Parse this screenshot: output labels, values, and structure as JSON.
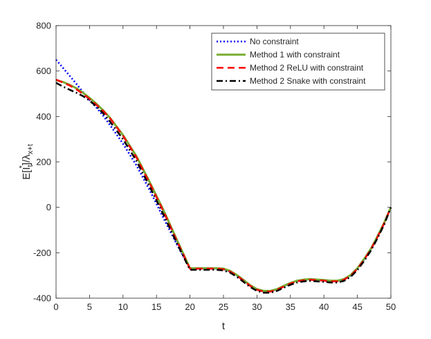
{
  "chart_data": {
    "type": "line",
    "title": "",
    "xlabel": "t",
    "ylabel_main": "E[I",
    "ylabel_sub": "t",
    "ylabel_sup": "*",
    "ylabel_tail": "]/λ",
    "ylabel_tail_sub": "x+t",
    "xlim": [
      0,
      50
    ],
    "ylim": [
      -400,
      800
    ],
    "xticks": [
      "0",
      "5",
      "10",
      "15",
      "20",
      "25",
      "30",
      "35",
      "40",
      "45",
      "50"
    ],
    "xtick_values": [
      0,
      5,
      10,
      15,
      20,
      25,
      30,
      35,
      40,
      45,
      50
    ],
    "yticks": [
      "-400",
      "-200",
      "0",
      "200",
      "400",
      "600",
      "800"
    ],
    "ytick_values": [
      -400,
      -200,
      0,
      200,
      400,
      600,
      800
    ],
    "grid": false,
    "legend_position": "top-right",
    "series": [
      {
        "name": "No constraint",
        "color": "#0000ff",
        "dash": "dotted",
        "x": [
          0,
          1,
          2,
          3,
          4,
          5,
          6,
          7,
          8,
          10,
          12,
          14,
          16,
          18,
          20,
          21,
          22,
          23,
          24,
          25,
          26,
          27,
          28,
          29,
          30,
          31,
          32,
          33,
          34,
          35,
          36,
          37,
          38,
          39,
          40,
          41,
          42,
          43,
          44,
          45,
          46,
          47,
          48,
          49,
          50
        ],
        "y": [
          650,
          615,
          580,
          545,
          508,
          472,
          440,
          405,
          365,
          280,
          185,
          75,
          -45,
          -160,
          -270,
          -270,
          -270,
          -270,
          -270,
          -272,
          -282,
          -300,
          -322,
          -345,
          -362,
          -370,
          -370,
          -362,
          -348,
          -335,
          -325,
          -320,
          -318,
          -320,
          -322,
          -325,
          -325,
          -318,
          -300,
          -270,
          -230,
          -185,
          -130,
          -70,
          0
        ]
      },
      {
        "name": "Method 1 with constraint",
        "color": "#77ac30",
        "dash": "solid",
        "x": [
          0,
          1,
          2,
          3,
          4,
          5,
          6,
          7,
          8,
          10,
          12,
          14,
          16,
          18,
          20,
          21,
          22,
          23,
          24,
          25,
          26,
          27,
          28,
          29,
          30,
          31,
          32,
          33,
          34,
          35,
          36,
          37,
          38,
          39,
          40,
          41,
          42,
          43,
          44,
          45,
          46,
          47,
          48,
          49,
          50
        ],
        "y": [
          560,
          552,
          540,
          525,
          505,
          482,
          456,
          428,
          396,
          318,
          225,
          110,
          -10,
          -140,
          -268,
          -268,
          -268,
          -268,
          -268,
          -270,
          -280,
          -298,
          -320,
          -343,
          -360,
          -368,
          -368,
          -360,
          -346,
          -333,
          -323,
          -318,
          -316,
          -318,
          -320,
          -323,
          -323,
          -316,
          -298,
          -268,
          -228,
          -183,
          -128,
          -68,
          0
        ]
      },
      {
        "name": "Method 2 ReLU with constraint",
        "color": "#ff0000",
        "dash": "dashed",
        "x": [
          0,
          1,
          2,
          3,
          4,
          5,
          6,
          7,
          8,
          10,
          12,
          14,
          16,
          18,
          20,
          21,
          22,
          23,
          24,
          25,
          26,
          27,
          28,
          29,
          30,
          31,
          32,
          33,
          34,
          35,
          36,
          37,
          38,
          39,
          40,
          41,
          42,
          43,
          44,
          45,
          46,
          47,
          48,
          49,
          50
        ],
        "y": [
          562,
          550,
          537,
          520,
          500,
          477,
          452,
          425,
          395,
          315,
          220,
          105,
          -15,
          -145,
          -270,
          -270,
          -270,
          -270,
          -270,
          -273,
          -283,
          -301,
          -323,
          -346,
          -363,
          -371,
          -371,
          -363,
          -349,
          -336,
          -326,
          -321,
          -319,
          -321,
          -323,
          -326,
          -326,
          -319,
          -301,
          -271,
          -231,
          -186,
          -131,
          -71,
          0
        ]
      },
      {
        "name": "Method 2 Snake with constraint",
        "color": "#000000",
        "dash": "dashdot",
        "x": [
          0,
          1,
          2,
          3,
          4,
          5,
          6,
          7,
          8,
          10,
          12,
          14,
          16,
          18,
          20,
          21,
          22,
          23,
          24,
          25,
          26,
          27,
          28,
          29,
          30,
          31,
          32,
          33,
          34,
          35,
          36,
          37,
          38,
          39,
          40,
          41,
          42,
          43,
          44,
          45,
          46,
          47,
          48,
          49,
          50
        ],
        "y": [
          548,
          532,
          518,
          505,
          490,
          470,
          445,
          415,
          380,
          300,
          205,
          90,
          -30,
          -155,
          -275,
          -275,
          -275,
          -275,
          -275,
          -278,
          -288,
          -306,
          -328,
          -351,
          -368,
          -376,
          -376,
          -368,
          -354,
          -341,
          -331,
          -326,
          -324,
          -326,
          -328,
          -331,
          -331,
          -324,
          -306,
          -276,
          -236,
          -191,
          -136,
          -76,
          0
        ]
      }
    ]
  }
}
